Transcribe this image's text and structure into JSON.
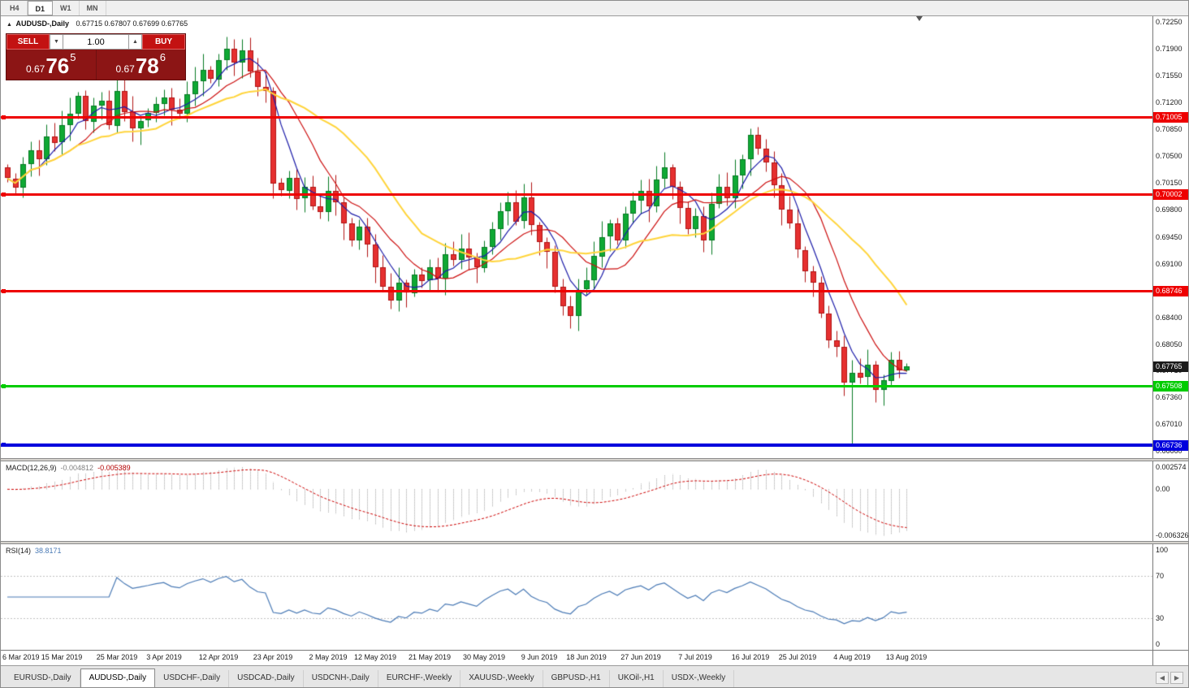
{
  "toolbar": {
    "timeframes": [
      {
        "label": "H4",
        "active": false
      },
      {
        "label": "D1",
        "active": true
      },
      {
        "label": "W1",
        "active": false
      },
      {
        "label": "MN",
        "active": false
      }
    ]
  },
  "chart": {
    "title": {
      "icon": "▲",
      "symbol": "AUDUSD-,Daily",
      "ohlc": "0.67715 0.67807 0.67699 0.67765"
    },
    "trade_widget": {
      "sell_label": "SELL",
      "buy_label": "BUY",
      "volume": "1.00",
      "spin_down_icon": "▼",
      "spin_up_icon": "▲",
      "sell_price": {
        "prefix": "0.67",
        "big": "76",
        "pip": "5"
      },
      "buy_price": {
        "prefix": "0.67",
        "big": "78",
        "pip": "6"
      }
    }
  },
  "chart_data": {
    "type": "candlestick",
    "symbol": "AUDUSD",
    "timeframe": "Daily",
    "first_open": 0.7035,
    "closes": [
      0.7021,
      0.7009,
      0.704,
      0.7058,
      0.7046,
      0.7076,
      0.7068,
      0.709,
      0.7105,
      0.7128,
      0.7095,
      0.7116,
      0.7122,
      0.709,
      0.7135,
      0.7108,
      0.7086,
      0.7096,
      0.7106,
      0.7118,
      0.7126,
      0.711,
      0.7105,
      0.713,
      0.7147,
      0.7162,
      0.715,
      0.7175,
      0.719,
      0.7172,
      0.7188,
      0.716,
      0.714,
      0.7135,
      0.7015,
      0.7005,
      0.7022,
      0.6995,
      0.701,
      0.6985,
      0.6978,
      0.7005,
      0.699,
      0.6962,
      0.694,
      0.6958,
      0.6935,
      0.6905,
      0.688,
      0.6862,
      0.6885,
      0.6872,
      0.6896,
      0.6888,
      0.6905,
      0.689,
      0.6922,
      0.6915,
      0.693,
      0.6918,
      0.6905,
      0.6932,
      0.6955,
      0.6978,
      0.699,
      0.6965,
      0.6996,
      0.696,
      0.6938,
      0.6925,
      0.688,
      0.6855,
      0.6842,
      0.6876,
      0.6888,
      0.692,
      0.6945,
      0.6962,
      0.694,
      0.6975,
      0.6992,
      0.7005,
      0.6985,
      0.702,
      0.7035,
      0.701,
      0.6982,
      0.6955,
      0.6972,
      0.694,
      0.6988,
      0.701,
      0.6995,
      0.7025,
      0.7046,
      0.7078,
      0.706,
      0.7042,
      0.7012,
      0.698,
      0.6962,
      0.6928,
      0.69,
      0.6885,
      0.6845,
      0.681,
      0.6802,
      0.6755,
      0.6768,
      0.6762,
      0.6778,
      0.6745,
      0.6758,
      0.6785,
      0.67715,
      0.67765
    ],
    "special": {
      "28": {
        "high": 0.7206
      },
      "108": {
        "low": 0.6674
      },
      "115": {
        "high": 0.67807,
        "low": 0.67699
      }
    },
    "colors": {
      "bull": "#0fa934",
      "bull_border": "#067a22",
      "bear": "#e63030",
      "bear_border": "#b01414",
      "macd_hist": "#9e9e9e",
      "macd_signal": "#cc0000",
      "rsi": "#4a7ab5",
      "level_dotted": "#c0c0c0",
      "current_price_flag": "#1a1a1a"
    },
    "moving_averages": [
      {
        "period": 5,
        "color": "#1b1ba8"
      },
      {
        "period": 10,
        "color": "#cc0f0f"
      },
      {
        "period": 20,
        "color": "#ffd43a"
      }
    ],
    "horizontal_lines": [
      {
        "value": 0.71005,
        "label": "0.71005",
        "color": "#ee0000",
        "thickness": 3,
        "role": "resistance"
      },
      {
        "value": 0.70002,
        "label": "0.70002",
        "color": "#ee0000",
        "thickness": 3,
        "role": "resistance"
      },
      {
        "value": 0.68746,
        "label": "0.68746",
        "color": "#ee0000",
        "thickness": 3,
        "role": "resistance"
      },
      {
        "value": 0.67508,
        "label": "0.67508",
        "color": "#00cc00",
        "thickness": 3,
        "role": "support"
      },
      {
        "value": 0.66736,
        "label": "0.66736",
        "color": "#0000dd",
        "thickness": 4,
        "role": "support"
      }
    ],
    "current_price": {
      "value": 0.67765,
      "label": "0.67765"
    },
    "price_axis_ticks": [
      "0.72250",
      "0.71900",
      "0.71550",
      "0.71200",
      "0.70850",
      "0.70500",
      "0.70150",
      "0.69800",
      "0.69450",
      "0.69100",
      "0.68750",
      "0.68400",
      "0.68050",
      "0.67710",
      "0.67360",
      "0.67010",
      "0.66660"
    ],
    "date_labels": [
      {
        "text": "6 Mar 2019",
        "index": 0
      },
      {
        "text": "15 Mar 2019",
        "index": 7
      },
      {
        "text": "25 Mar 2019",
        "index": 14
      },
      {
        "text": "3 Apr 2019",
        "index": 20
      },
      {
        "text": "12 Apr 2019",
        "index": 27
      },
      {
        "text": "23 Apr 2019",
        "index": 34
      },
      {
        "text": "2 May 2019",
        "index": 41
      },
      {
        "text": "12 May 2019",
        "index": 47
      },
      {
        "text": "21 May 2019",
        "index": 54
      },
      {
        "text": "30 May 2019",
        "index": 61
      },
      {
        "text": "9 Jun 2019",
        "index": 68
      },
      {
        "text": "18 Jun 2019",
        "index": 74
      },
      {
        "text": "27 Jun 2019",
        "index": 81
      },
      {
        "text": "7 Jul 2019",
        "index": 88
      },
      {
        "text": "16 Jul 2019",
        "index": 95
      },
      {
        "text": "25 Jul 2019",
        "index": 101
      },
      {
        "text": "4 Aug 2019",
        "index": 108
      },
      {
        "text": "13 Aug 2019",
        "index": 115
      }
    ],
    "indicators": {
      "macd": {
        "label": "MACD(12,26,9)",
        "value_main": "-0.004812",
        "value_signal": "-0.005389",
        "fast": 12,
        "slow": 26,
        "signal": 9,
        "axis_top": "0.002574",
        "axis_zero": "0.00",
        "axis_bottom": "-0.006326"
      },
      "rsi": {
        "label": "RSI(14)",
        "value": "38.8171",
        "period": 14,
        "levels": [
          70,
          30
        ],
        "axis_top": "100",
        "level_high": "70",
        "level_low": "30",
        "axis_bottom": "0"
      }
    }
  },
  "tabs": {
    "items": [
      {
        "label": "EURUSD-,Daily",
        "active": false
      },
      {
        "label": "AUDUSD-,Daily",
        "active": true
      },
      {
        "label": "USDCHF-,Daily",
        "active": false
      },
      {
        "label": "USDCAD-,Daily",
        "active": false
      },
      {
        "label": "USDCNH-,Daily",
        "active": false
      },
      {
        "label": "EURCHF-,Weekly",
        "active": false
      },
      {
        "label": "XAUUSD-,Weekly",
        "active": false
      },
      {
        "label": "GBPUSD-,H1",
        "active": false
      },
      {
        "label": "UKOil-,H1",
        "active": false
      },
      {
        "label": "USDX-,Weekly",
        "active": false
      }
    ],
    "scroll_left_icon": "◀",
    "scroll_right_icon": "▶"
  }
}
